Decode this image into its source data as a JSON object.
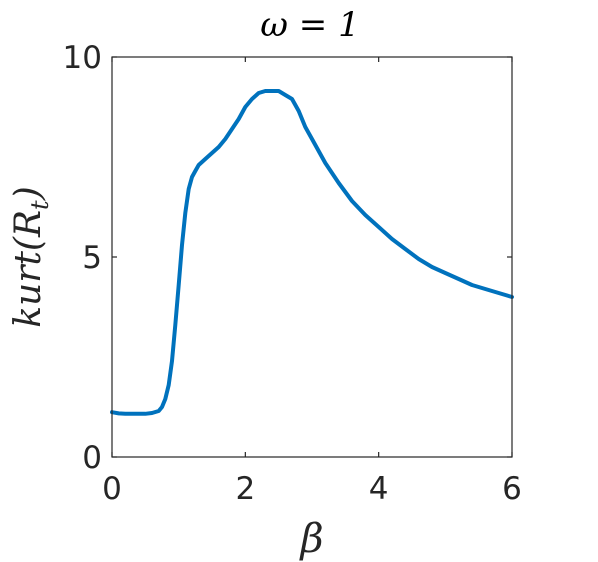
{
  "chart_data": {
    "type": "line",
    "title": "ω = 1",
    "xlabel": "β",
    "ylabel": "kurt(R",
    "ylabel_subscript": "t",
    "ylabel_close": ")",
    "xlim": [
      0,
      6
    ],
    "ylim": [
      0,
      10
    ],
    "xticks": [
      0,
      2,
      4,
      6
    ],
    "yticks": [
      0,
      5,
      10
    ],
    "grid": false,
    "line_color": "#0072BD",
    "series": [
      {
        "x": [
          0.0,
          0.1,
          0.2,
          0.3,
          0.4,
          0.5,
          0.6,
          0.7,
          0.75,
          0.8,
          0.85,
          0.9,
          0.95,
          1.0,
          1.05,
          1.1,
          1.15,
          1.2,
          1.25,
          1.3,
          1.4,
          1.5,
          1.6,
          1.7,
          1.8,
          1.9,
          2.0,
          2.1,
          2.2,
          2.3,
          2.4,
          2.5,
          2.6,
          2.7,
          2.8,
          2.9,
          3.0,
          3.2,
          3.4,
          3.6,
          3.8,
          4.0,
          4.2,
          4.4,
          4.6,
          4.8,
          5.0,
          5.2,
          5.4,
          5.6,
          5.8,
          6.0
        ],
        "y": [
          1.12,
          1.09,
          1.08,
          1.08,
          1.08,
          1.08,
          1.1,
          1.15,
          1.25,
          1.45,
          1.8,
          2.4,
          3.3,
          4.3,
          5.3,
          6.1,
          6.7,
          7.0,
          7.15,
          7.3,
          7.45,
          7.6,
          7.75,
          7.95,
          8.2,
          8.45,
          8.75,
          8.95,
          9.1,
          9.15,
          9.15,
          9.15,
          9.05,
          8.95,
          8.65,
          8.25,
          7.95,
          7.35,
          6.85,
          6.4,
          6.05,
          5.75,
          5.45,
          5.2,
          4.95,
          4.75,
          4.6,
          4.45,
          4.3,
          4.2,
          4.1,
          4.0
        ]
      }
    ]
  }
}
